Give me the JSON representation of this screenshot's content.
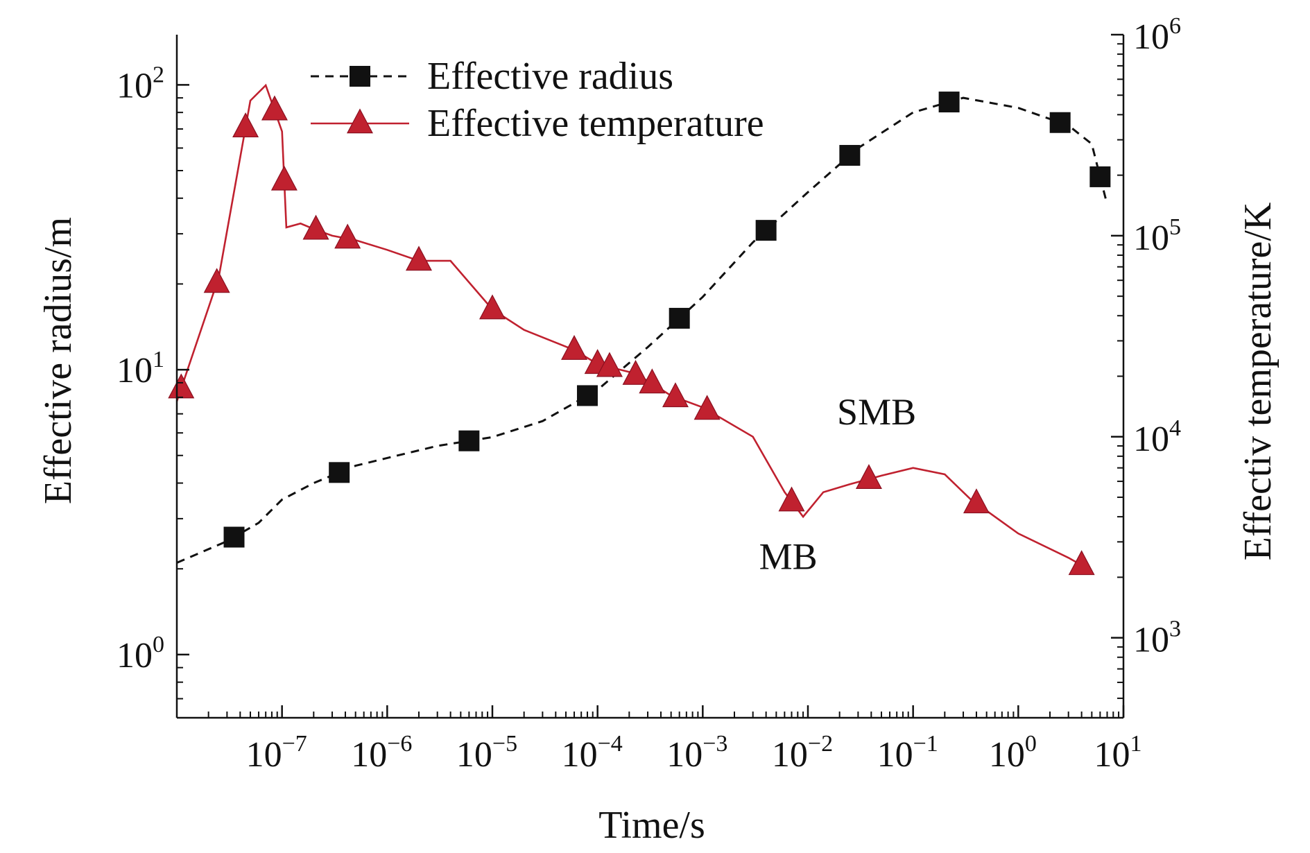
{
  "chart_data": {
    "type": "line",
    "title": "",
    "xlabel": "Time/s",
    "ylabel_left": "Effective radius/m",
    "ylabel_right": "Effectiv temperature/K",
    "x_scale": "log",
    "y_left_scale": "log",
    "y_right_scale": "log",
    "xlim": [
      1e-08,
      10
    ],
    "ylim_left": [
      0.6,
      150
    ],
    "ylim_right": [
      400,
      1000000
    ],
    "x_ticks": [
      {
        "value": 1e-07,
        "base": "10",
        "exp": "−7"
      },
      {
        "value": 1e-06,
        "base": "10",
        "exp": "−6"
      },
      {
        "value": 1e-05,
        "base": "10",
        "exp": "−5"
      },
      {
        "value": 0.0001,
        "base": "10",
        "exp": "−4"
      },
      {
        "value": 0.001,
        "base": "10",
        "exp": "−3"
      },
      {
        "value": 0.01,
        "base": "10",
        "exp": "−2"
      },
      {
        "value": 0.1,
        "base": "10",
        "exp": "−1"
      },
      {
        "value": 1,
        "base": "10",
        "exp": "0"
      },
      {
        "value": 10,
        "base": "10",
        "exp": "1"
      }
    ],
    "y_left_ticks": [
      {
        "value": 1,
        "base": "10",
        "exp": "0"
      },
      {
        "value": 10,
        "base": "10",
        "exp": "1"
      },
      {
        "value": 100,
        "base": "10",
        "exp": "2"
      }
    ],
    "y_right_ticks": [
      {
        "value": 1000,
        "base": "10",
        "exp": "3"
      },
      {
        "value": 10000,
        "base": "10",
        "exp": "4"
      },
      {
        "value": 100000,
        "base": "10",
        "exp": "5"
      },
      {
        "value": 1000000,
        "base": "10",
        "exp": "6"
      }
    ],
    "legend_position": "top-left",
    "grid": false,
    "series": [
      {
        "name": "Effective radius",
        "axis": "left",
        "color": "#111111",
        "line_style": "dashed",
        "marker": "square",
        "x": [
          1e-08,
          3e-08,
          6e-08,
          1e-07,
          2e-07,
          5e-07,
          1e-06,
          3e-06,
          1e-05,
          3e-05,
          0.0001,
          0.0003,
          0.001,
          0.003,
          0.01,
          0.03,
          0.1,
          0.3,
          1,
          3,
          5,
          7
        ],
        "y": [
          2.1,
          2.5,
          2.9,
          3.5,
          4.0,
          4.6,
          4.9,
          5.4,
          5.8,
          6.6,
          8.5,
          12,
          18,
          28,
          42,
          60,
          80,
          90,
          83,
          72,
          62,
          38
        ]
      },
      {
        "name": "Effective temperature",
        "axis": "right",
        "color": "#c0212f",
        "line_style": "solid",
        "marker": "triangle",
        "x": [
          1e-08,
          2.5e-08,
          5e-08,
          7e-08,
          1e-07,
          1.1e-07,
          1.5e-07,
          2e-07,
          3e-07,
          5e-07,
          1e-06,
          2e-06,
          4e-06,
          1e-05,
          2e-05,
          6e-05,
          0.0001,
          0.0002,
          0.0003,
          0.0005,
          0.001,
          0.003,
          0.006,
          0.009,
          0.014,
          0.025,
          0.05,
          0.1,
          0.2,
          0.35,
          1,
          3,
          5
        ],
        "y": [
          15000,
          62000,
          470000,
          560000,
          330000,
          110000,
          115000,
          108000,
          100000,
          95000,
          85000,
          75000,
          75000,
          43000,
          34000,
          27000,
          23000,
          21000,
          19000,
          16000,
          14000,
          10000,
          5300,
          4000,
          5300,
          5800,
          6400,
          7000,
          6500,
          4900,
          3300,
          2500,
          2150
        ]
      }
    ],
    "markers": [
      {
        "series": 0,
        "x": [
          3.5e-08,
          3.5e-07,
          6e-06,
          8e-05,
          0.0006,
          0.004,
          0.025,
          0.22,
          2.5,
          6
        ]
      },
      {
        "series": 1,
        "x": [
          1.1e-08,
          2.4e-08,
          4.5e-08,
          8.5e-08,
          1.05e-07,
          2.1e-07,
          4.2e-07,
          2e-06,
          1e-05,
          6e-05,
          0.0001,
          0.00013,
          0.00023,
          0.00033,
          0.00055,
          0.0011,
          0.007,
          0.038,
          0.4,
          4
        ]
      }
    ],
    "annotations": [
      {
        "text": "MB",
        "x": 0.0065,
        "y": 2200,
        "axis": "right"
      },
      {
        "text": "SMB",
        "x": 0.045,
        "y": 11500,
        "axis": "right"
      }
    ]
  }
}
